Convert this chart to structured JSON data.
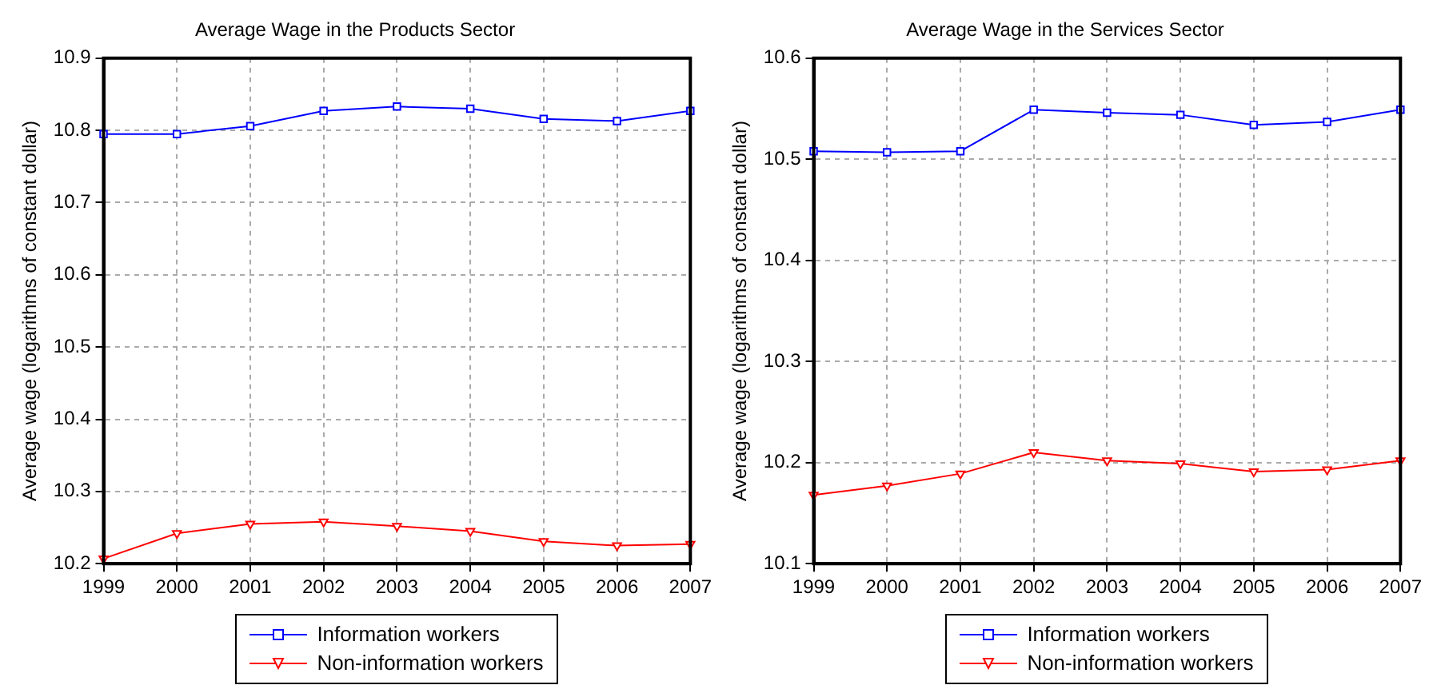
{
  "chart_data": [
    {
      "type": "line",
      "title": "Average Wage in the Products Sector",
      "ylabel": "Average wage (logarithms of constant dollar)",
      "categories": [
        "1999",
        "2000",
        "2001",
        "2002",
        "2003",
        "2004",
        "2005",
        "2006",
        "2007"
      ],
      "series": [
        {
          "name": "Information workers",
          "color": "#0000ff",
          "marker": "square",
          "values": [
            10.795,
            10.795,
            10.806,
            10.827,
            10.833,
            10.83,
            10.816,
            10.813,
            10.827
          ]
        },
        {
          "name": "Non-information workers",
          "color": "#ff0000",
          "marker": "triangle",
          "values": [
            10.207,
            10.242,
            10.255,
            10.258,
            10.252,
            10.245,
            10.231,
            10.225,
            10.227
          ]
        }
      ],
      "ylim": [
        10.2,
        10.9
      ],
      "yticks": [
        10.2,
        10.3,
        10.4,
        10.5,
        10.6,
        10.7,
        10.8,
        10.9
      ],
      "grid": true,
      "legend": "bottom",
      "line_style": "solid"
    },
    {
      "type": "line",
      "title": "Average Wage in the Services Sector",
      "ylabel": "Average wage (logarithms of constant dollar)",
      "categories": [
        "1999",
        "2000",
        "2001",
        "2002",
        "2003",
        "2004",
        "2005",
        "2006",
        "2007"
      ],
      "series": [
        {
          "name": "Information workers",
          "color": "#0000ff",
          "marker": "square",
          "values": [
            10.508,
            10.507,
            10.508,
            10.549,
            10.546,
            10.544,
            10.534,
            10.537,
            10.549
          ]
        },
        {
          "name": "Non-information workers",
          "color": "#ff0000",
          "marker": "triangle",
          "values": [
            10.168,
            10.177,
            10.189,
            10.21,
            10.202,
            10.199,
            10.191,
            10.193,
            10.202
          ]
        }
      ],
      "ylim": [
        10.1,
        10.6
      ],
      "yticks": [
        10.1,
        10.2,
        10.3,
        10.4,
        10.5,
        10.6
      ],
      "grid": true,
      "legend": "bottom",
      "line_style": "solid"
    }
  ]
}
